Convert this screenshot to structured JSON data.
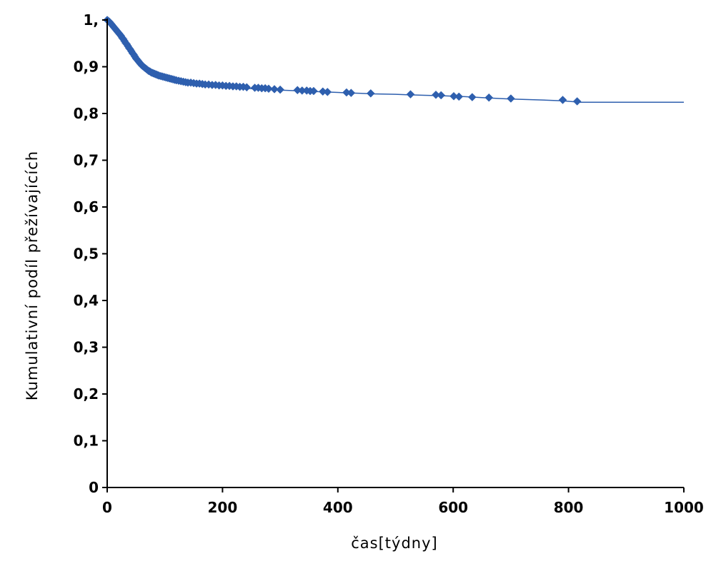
{
  "chart_data": {
    "type": "line",
    "title": "",
    "xlabel": "čas[týdny]",
    "ylabel": "Kumulativní podíl přežívajících",
    "xlim": [
      0,
      1000
    ],
    "ylim": [
      0,
      1
    ],
    "x_ticks": [
      0,
      200,
      400,
      600,
      800,
      1000
    ],
    "x_tick_labels": [
      "0",
      "200",
      "400",
      "600",
      "800",
      "1000"
    ],
    "y_ticks": [
      0,
      0.1,
      0.2,
      0.3,
      0.4,
      0.5,
      0.6,
      0.7,
      0.8,
      0.9,
      1.0
    ],
    "y_tick_labels": [
      "0",
      "0,1",
      "0,2",
      "0,3",
      "0,4",
      "0,5",
      "0,6",
      "0,7",
      "0,8",
      "0,9",
      "1,"
    ],
    "grid": false,
    "legend": "none",
    "color": "#2e5fae",
    "series": [
      {
        "line_x": [
          0,
          5,
          10,
          15,
          20,
          25,
          30,
          35,
          40,
          45,
          50,
          55,
          60,
          65,
          70,
          75,
          80,
          85,
          90,
          95,
          100,
          110,
          120,
          130,
          140,
          150,
          160,
          170,
          180,
          190,
          200,
          210,
          220,
          230,
          240,
          250,
          260,
          270,
          280,
          290,
          300,
          320,
          340,
          360,
          380,
          400,
          420,
          440,
          460,
          500,
          520,
          550,
          580,
          600,
          620,
          650,
          680,
          700,
          750,
          790,
          820,
          1000
        ],
        "line_y": [
          1.0,
          0.993,
          0.985,
          0.977,
          0.969,
          0.961,
          0.952,
          0.943,
          0.934,
          0.925,
          0.917,
          0.91,
          0.904,
          0.898,
          0.893,
          0.889,
          0.886,
          0.883,
          0.88,
          0.877,
          0.875,
          0.871,
          0.868,
          0.866,
          0.864,
          0.863,
          0.861,
          0.86,
          0.859,
          0.858,
          0.857,
          0.856,
          0.855,
          0.854,
          0.854,
          0.853,
          0.852,
          0.852,
          0.851,
          0.851,
          0.85,
          0.849,
          0.848,
          0.847,
          0.846,
          0.845,
          0.844,
          0.843,
          0.842,
          0.841,
          0.84,
          0.839,
          0.838,
          0.837,
          0.836,
          0.834,
          0.832,
          0.831,
          0.829,
          0.827,
          0.824,
          0.824
        ],
        "markers_x": [
          0,
          2,
          4,
          6,
          8,
          10,
          12,
          14,
          16,
          18,
          20,
          22,
          24,
          26,
          28,
          30,
          32,
          34,
          36,
          38,
          40,
          42,
          44,
          46,
          48,
          50,
          52,
          54,
          56,
          58,
          60,
          62,
          64,
          66,
          68,
          70,
          72,
          74,
          76,
          78,
          80,
          82,
          84,
          86,
          88,
          90,
          93,
          96,
          99,
          102,
          105,
          108,
          111,
          114,
          117,
          120,
          124,
          128,
          132,
          136,
          140,
          145,
          150,
          155,
          160,
          165,
          170,
          176,
          182,
          188,
          194,
          200,
          206,
          212,
          218,
          224,
          230,
          236,
          242,
          256,
          262,
          268,
          274,
          280,
          290,
          300,
          330,
          338,
          346,
          352,
          358,
          374,
          382,
          415,
          423,
          457,
          526,
          570,
          579,
          601,
          610,
          633,
          662,
          700,
          790,
          815
        ],
        "markers_y": [
          1.0,
          0.998,
          0.996,
          0.993,
          0.99,
          0.987,
          0.984,
          0.981,
          0.978,
          0.975,
          0.972,
          0.969,
          0.966,
          0.962,
          0.959,
          0.955,
          0.951,
          0.948,
          0.944,
          0.94,
          0.937,
          0.933,
          0.929,
          0.926,
          0.922,
          0.918,
          0.915,
          0.912,
          0.909,
          0.906,
          0.903,
          0.901,
          0.899,
          0.897,
          0.895,
          0.893,
          0.891,
          0.89,
          0.888,
          0.887,
          0.886,
          0.885,
          0.884,
          0.883,
          0.882,
          0.881,
          0.88,
          0.879,
          0.878,
          0.877,
          0.876,
          0.875,
          0.874,
          0.873,
          0.872,
          0.871,
          0.87,
          0.869,
          0.868,
          0.867,
          0.866,
          0.866,
          0.865,
          0.864,
          0.864,
          0.863,
          0.862,
          0.862,
          0.861,
          0.861,
          0.86,
          0.86,
          0.859,
          0.859,
          0.858,
          0.858,
          0.857,
          0.857,
          0.856,
          0.855,
          0.855,
          0.854,
          0.854,
          0.853,
          0.852,
          0.851,
          0.85,
          0.849,
          0.849,
          0.848,
          0.848,
          0.847,
          0.846,
          0.845,
          0.844,
          0.843,
          0.841,
          0.84,
          0.839,
          0.837,
          0.836,
          0.835,
          0.834,
          0.832,
          0.829,
          0.826
        ]
      }
    ]
  }
}
